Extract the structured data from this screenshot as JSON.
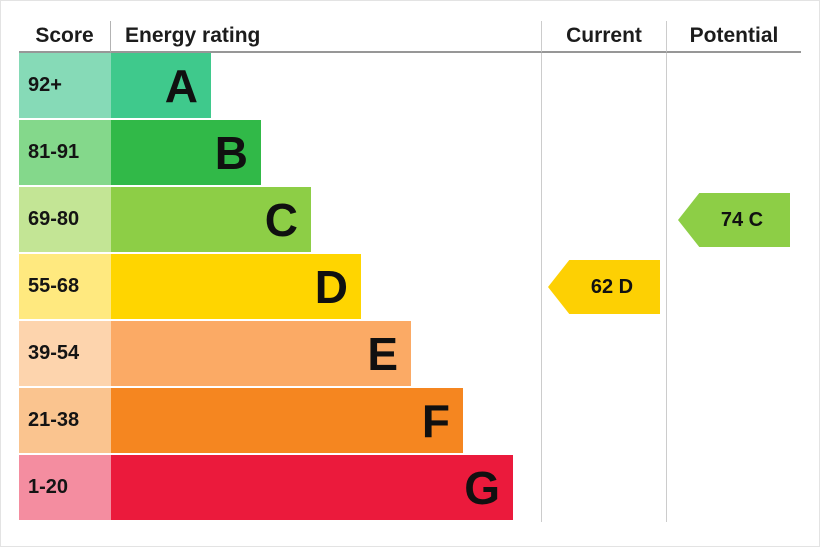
{
  "header": {
    "score": "Score",
    "energy_rating": "Energy rating",
    "current": "Current",
    "potential": "Potential"
  },
  "chart_data": {
    "type": "bar",
    "title": "Energy rating",
    "layout": {
      "legend": "none",
      "grid": "off",
      "bar_direction": "horizontal"
    },
    "bands": [
      {
        "score_range": "92+",
        "letter": "A",
        "band_color": "#3fc98c",
        "score_color": "#86dab7",
        "bar_width_pct": 23.3
      },
      {
        "score_range": "81-91",
        "letter": "B",
        "band_color": "#31b948",
        "score_color": "#84d88b",
        "bar_width_pct": 34.9
      },
      {
        "score_range": "69-80",
        "letter": "C",
        "band_color": "#8dce46",
        "score_color": "#c3e595",
        "bar_width_pct": 46.5
      },
      {
        "score_range": "55-68",
        "letter": "D",
        "band_color": "#ffd500",
        "score_color": "#ffe97f",
        "bar_width_pct": 58.1
      },
      {
        "score_range": "39-54",
        "letter": "E",
        "band_color": "#fbaa65",
        "score_color": "#fdd4ad",
        "bar_width_pct": 69.8
      },
      {
        "score_range": "21-38",
        "letter": "F",
        "band_color": "#f58620",
        "score_color": "#fac48f",
        "bar_width_pct": 81.9
      },
      {
        "score_range": "1-20",
        "letter": "G",
        "band_color": "#eb1a3c",
        "score_color": "#f48da0",
        "bar_width_pct": 93.5
      }
    ],
    "current": {
      "value": 62,
      "letter": "D",
      "label": "62 D",
      "color": "#fdd003",
      "band_index": 3
    },
    "potential": {
      "value": 74,
      "letter": "C",
      "label": "74 C",
      "color": "#8dce46",
      "band_index": 2
    }
  }
}
